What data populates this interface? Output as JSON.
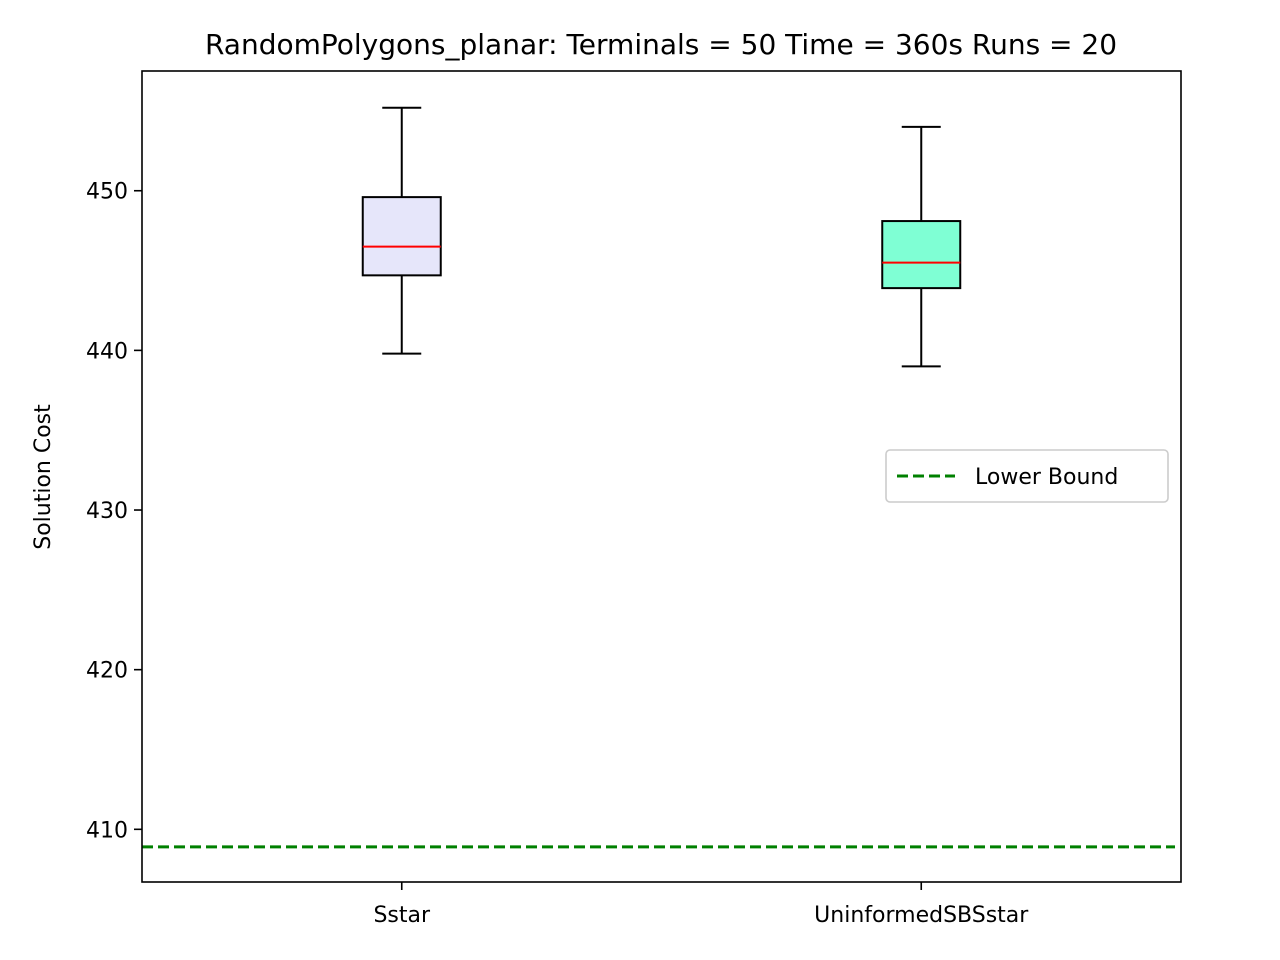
{
  "chart_data": {
    "type": "box",
    "title": "RandomPolygons_planar:  Terminals = 50  Time = 360s  Runs = 20",
    "xlabel": "",
    "ylabel": "Solution Cost",
    "ylim": [
      406.7,
      457.5
    ],
    "yticks": [
      410,
      420,
      430,
      440,
      450
    ],
    "categories": [
      "Sstar",
      "UninformedSBSstar"
    ],
    "boxes": [
      {
        "category": "Sstar",
        "whisker_low": 439.8,
        "q1": 444.7,
        "median": 446.5,
        "q3": 449.6,
        "whisker_high": 455.2,
        "color": "#e6e6fa"
      },
      {
        "category": "UninformedSBSstar",
        "whisker_low": 439.0,
        "q1": 443.9,
        "median": 445.5,
        "q3": 448.1,
        "whisker_high": 454.0,
        "color": "#7fffd4"
      }
    ],
    "median_color": "#ff0000",
    "reference_lines": [
      {
        "name": "Lower Bound",
        "y": 408.9,
        "color": "#008000",
        "style": "dashed"
      }
    ],
    "legend": {
      "placement": "center-right",
      "entries": [
        "Lower Bound"
      ]
    },
    "grid": false
  }
}
